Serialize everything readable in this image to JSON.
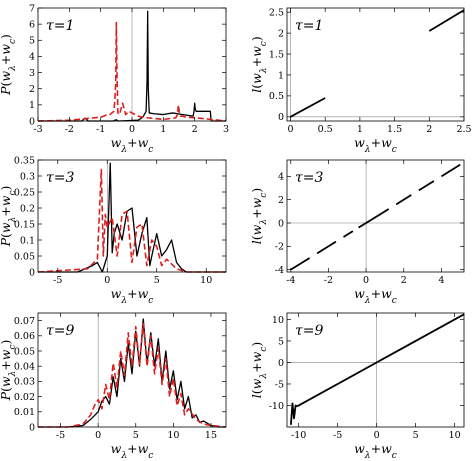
{
  "figure": {
    "panels": [
      {
        "id": "p-tau1",
        "tau_label": "τ=1"
      },
      {
        "id": "l-tau1",
        "tau_label": "τ=1"
      },
      {
        "id": "p-tau3",
        "tau_label": "τ=3"
      },
      {
        "id": "l-tau3",
        "tau_label": "τ=3"
      },
      {
        "id": "p-tau9",
        "tau_label": "τ=9"
      },
      {
        "id": "l-tau9",
        "tau_label": "τ=9"
      }
    ],
    "colors": {
      "solid": "#000000",
      "dashed": "#dd1f1f",
      "axis": "#000000",
      "zero_line": "#888888"
    }
  },
  "chart_data": [
    {
      "type": "line",
      "tau_label": "τ=1",
      "xlabel": "wλ+wc",
      "ylabel": "P(wλ+wc)",
      "xlim": [
        -3,
        3
      ],
      "ylim": [
        0,
        7
      ],
      "xticks": [
        -3,
        -2,
        -1,
        0,
        1,
        2,
        3
      ],
      "yticks": [
        0,
        1,
        2,
        3,
        4,
        5,
        6,
        7
      ],
      "series": [
        {
          "style": "solid",
          "x": [
            -3,
            -1.6,
            -1.5,
            -1.45,
            -1.4,
            -0.6,
            -0.5,
            -0.45,
            0.2,
            0.35,
            0.45,
            0.48,
            0.5,
            0.52,
            0.55,
            0.7,
            1.0,
            1.3,
            1.6,
            1.95,
            1.98,
            2.0,
            2.02,
            2.05,
            2.3,
            2.5,
            2.52,
            2.55,
            3
          ],
          "y": [
            0,
            0,
            0.18,
            0.1,
            0,
            0,
            0.08,
            0,
            0.05,
            0.25,
            0.6,
            2.5,
            6.8,
            2.0,
            0.5,
            0.45,
            0.4,
            0.5,
            0.4,
            0.3,
            0.6,
            1.1,
            0.7,
            0.6,
            0.6,
            0.6,
            0.1,
            0,
            0
          ]
        },
        {
          "style": "dashed",
          "x": [
            -3,
            -2,
            -1.2,
            -1.0,
            -0.9,
            -0.85,
            -0.7,
            -0.58,
            -0.55,
            -0.52,
            -0.5,
            -0.48,
            -0.45,
            -0.4,
            -0.3,
            -0.2,
            -0.1,
            0,
            0.2,
            0.3,
            0.4,
            0.5,
            1.0,
            1.4,
            1.45,
            1.48,
            1.5,
            1.52,
            1.55,
            1.6,
            1.7,
            2.0,
            2.3,
            2.5,
            3
          ],
          "y": [
            0,
            0.05,
            0.2,
            0.25,
            0.3,
            0.35,
            0.4,
            0.6,
            1.2,
            2.4,
            6.1,
            3.0,
            0.5,
            0.4,
            1.1,
            0.4,
            0.6,
            0.5,
            0.3,
            0.25,
            0.25,
            0.2,
            0.1,
            0.2,
            0.4,
            1.0,
            0.7,
            0.4,
            0.3,
            0.3,
            0.25,
            0.2,
            0.15,
            0.1,
            0
          ]
        }
      ]
    },
    {
      "type": "line",
      "tau_label": "τ=1",
      "xlabel": "wλ+wc",
      "ylabel": "l(wλ+wc)",
      "xlim": [
        -0.05,
        2.5
      ],
      "ylim": [
        -0.1,
        2.6
      ],
      "xticks": [
        0.0,
        0.5,
        1.0,
        1.5,
        2.0,
        2.5
      ],
      "yticks": [
        0.0,
        0.5,
        1.0,
        1.5,
        2.0,
        2.5
      ],
      "series": [
        {
          "style": "solid",
          "x": [
            0.0,
            0.5
          ],
          "y": [
            0.0,
            0.45
          ]
        },
        {
          "style": "solid",
          "x": [
            2.0,
            2.5
          ],
          "y": [
            2.05,
            2.55
          ]
        }
      ]
    },
    {
      "type": "line",
      "tau_label": "τ=3",
      "xlabel": "wλ+wc",
      "ylabel": "P(wλ+wc)",
      "xlim": [
        -7,
        12
      ],
      "ylim": [
        0,
        0.35
      ],
      "xticks": [
        -5,
        0,
        5,
        10
      ],
      "yticks": [
        0.0,
        0.05,
        0.1,
        0.15,
        0.2,
        0.25,
        0.3,
        0.35
      ],
      "series": [
        {
          "style": "solid",
          "x": [
            -7,
            -3,
            -1.5,
            -1,
            -0.5,
            0,
            0.3,
            0.5,
            0.7,
            1,
            1.5,
            2,
            2.5,
            3,
            3.5,
            4,
            4.3,
            4.5,
            5,
            5.5,
            6,
            6.5,
            7,
            7.5,
            8,
            9,
            12
          ],
          "y": [
            0,
            0,
            0.02,
            0.03,
            0.0,
            0.05,
            0.34,
            0.06,
            0.12,
            0.15,
            0.1,
            0.19,
            0.2,
            0.05,
            0.12,
            0.17,
            0.02,
            0.05,
            0.12,
            0.05,
            0.07,
            0.1,
            0.03,
            0.01,
            0.0,
            0.0,
            0
          ]
        },
        {
          "style": "dashed",
          "x": [
            -7,
            -2,
            -1,
            -0.6,
            -0.4,
            -0.2,
            0,
            0.5,
            1,
            1.5,
            2,
            2.5,
            3,
            3.5,
            4,
            4.5,
            5,
            5.5,
            6,
            7,
            8,
            12
          ],
          "y": [
            0,
            0.01,
            0.04,
            0.32,
            0.05,
            0.18,
            0.14,
            0.17,
            0.05,
            0.18,
            0.19,
            0.03,
            0.14,
            0.15,
            0.02,
            0.1,
            0.08,
            0.02,
            0.04,
            0.01,
            0,
            0
          ]
        }
      ]
    },
    {
      "type": "line",
      "tau_label": "τ=3",
      "xlabel": "wλ+wc",
      "ylabel": "l(wλ+wc)",
      "xlim": [
        -4.2,
        5.2
      ],
      "ylim": [
        -4.2,
        5.4
      ],
      "xticks": [
        -4,
        -2,
        0,
        2,
        4
      ],
      "yticks": [
        -4,
        -2,
        0,
        2,
        4
      ],
      "series": [
        {
          "style": "solid",
          "x": [
            -4,
            -3
          ],
          "y": [
            -4,
            -3
          ]
        },
        {
          "style": "solid",
          "x": [
            -2.6,
            -1.6
          ],
          "y": [
            -2.6,
            -1.6
          ]
        },
        {
          "style": "solid",
          "x": [
            -1.2,
            -0.7
          ],
          "y": [
            -1.2,
            -0.7
          ]
        },
        {
          "style": "solid",
          "x": [
            -0.4,
            1.2
          ],
          "y": [
            -0.4,
            1.2
          ]
        },
        {
          "style": "solid",
          "x": [
            1.6,
            2.4
          ],
          "y": [
            1.6,
            2.4
          ]
        },
        {
          "style": "solid",
          "x": [
            2.8,
            3.6
          ],
          "y": [
            2.8,
            3.6
          ]
        },
        {
          "style": "solid",
          "x": [
            4.0,
            5.0
          ],
          "y": [
            4.0,
            5.0
          ]
        }
      ]
    },
    {
      "type": "line",
      "tau_label": "τ=9",
      "xlabel": "wλ+wc",
      "ylabel": "P(wλ+wc)",
      "xlim": [
        -8,
        17
      ],
      "ylim": [
        0,
        0.075
      ],
      "xticks": [
        -5,
        0,
        5,
        10,
        15
      ],
      "yticks": [
        0.0,
        0.01,
        0.02,
        0.03,
        0.04,
        0.05,
        0.06,
        0.07
      ],
      "series": [
        {
          "style": "solid",
          "x": [
            -8,
            -4,
            -2,
            -1,
            0,
            0.5,
            1,
            1.5,
            2,
            2.5,
            3,
            3.5,
            4,
            4.5,
            5,
            5.5,
            6,
            6.5,
            7,
            7.5,
            8,
            8.5,
            9,
            9.5,
            10,
            10.5,
            11,
            11.5,
            12,
            12.5,
            13,
            13.5,
            14,
            15,
            16,
            17
          ],
          "y": [
            0,
            0,
            0.001,
            0.005,
            0.01,
            0.017,
            0.02,
            0.015,
            0.033,
            0.02,
            0.045,
            0.03,
            0.055,
            0.035,
            0.063,
            0.04,
            0.071,
            0.042,
            0.062,
            0.04,
            0.058,
            0.03,
            0.05,
            0.025,
            0.037,
            0.018,
            0.03,
            0.012,
            0.02,
            0.006,
            0.008,
            0.003,
            0.004,
            0.001,
            0,
            0
          ]
        },
        {
          "style": "dashed",
          "x": [
            -8,
            -4,
            -2,
            -1,
            -0.5,
            0,
            0.5,
            1,
            1.5,
            2,
            2.5,
            3,
            3.5,
            4,
            4.5,
            5,
            5.5,
            6,
            6.5,
            7,
            7.5,
            8,
            8.5,
            9,
            9.5,
            10,
            10.5,
            11,
            11.5,
            12,
            13,
            14,
            15,
            17
          ],
          "y": [
            0,
            0,
            0.002,
            0.008,
            0.014,
            0.018,
            0.012,
            0.028,
            0.018,
            0.042,
            0.026,
            0.05,
            0.034,
            0.062,
            0.04,
            0.066,
            0.041,
            0.068,
            0.04,
            0.06,
            0.035,
            0.052,
            0.028,
            0.045,
            0.02,
            0.032,
            0.014,
            0.022,
            0.008,
            0.012,
            0.005,
            0.002,
            0.001,
            0
          ]
        }
      ]
    },
    {
      "type": "line",
      "tau_label": "τ=9",
      "xlabel": "wλ+wc",
      "ylabel": "l(wλ+wc)",
      "xlim": [
        -11.5,
        11.2
      ],
      "ylim": [
        -15,
        11.5
      ],
      "xticks": [
        -10,
        -5,
        0,
        5,
        10
      ],
      "yticks": [
        -10,
        -5,
        0,
        5,
        10
      ],
      "series": [
        {
          "style": "solid",
          "x": [
            -10.2,
            11.2
          ],
          "y": [
            -10.2,
            11.2
          ]
        },
        {
          "style": "solid",
          "x": [
            -11,
            -10.8,
            -10.6,
            -10.4,
            -10.2
          ],
          "y": [
            -14.5,
            -9.5,
            -13,
            -10,
            -10.2
          ]
        }
      ]
    }
  ]
}
